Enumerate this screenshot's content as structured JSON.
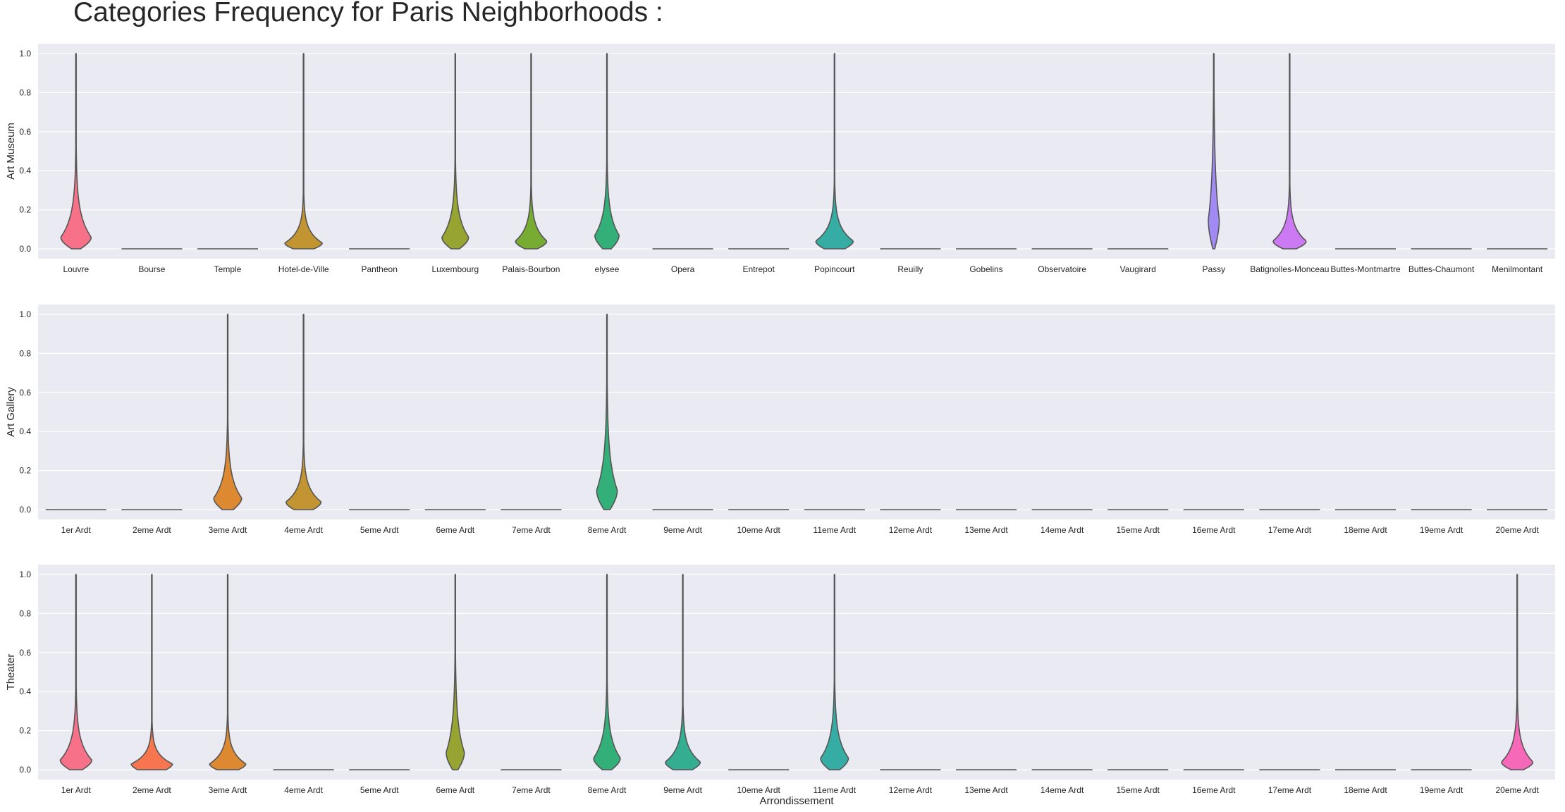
{
  "title": "Categories Frequency for Paris Neighborhoods :",
  "colors": {
    "background": "#eaeaf2",
    "grid": "#ffffff",
    "outline": "#555555",
    "palette": [
      "#f77189",
      "#f7754f",
      "#dc8932",
      "#c39532",
      "#ae9d31",
      "#97a431",
      "#77ab31",
      "#33b07a",
      "#34ae91",
      "#35ac9e",
      "#36ada4",
      "#37abb4",
      "#38a9c5",
      "#3ba3ec",
      "#8e91f4",
      "#a28af4",
      "#cc7af4",
      "#f45cf2",
      "#f565cc",
      "#f668b8"
    ]
  },
  "chart_data": [
    {
      "type": "violin",
      "ylabel": "Art Museum",
      "xlabel": "",
      "ylim": [
        0,
        1.0
      ],
      "yticks": [
        "0.0",
        "0.2",
        "0.4",
        "0.6",
        "0.8",
        "1.0"
      ],
      "grid": true,
      "categories": [
        "Louvre",
        "Bourse",
        "Temple",
        "Hotel-de-Ville",
        "Pantheon",
        "Luxembourg",
        "Palais-Bourbon",
        "elysee",
        "Opera",
        "Entrepot",
        "Popincourt",
        "Reuilly",
        "Gobelins",
        "Observatoire",
        "Vaugirard",
        "Passy",
        "Batignolles-Monceau",
        "Buttes-Montmartre",
        "Buttes-Chaumont",
        "Menilmontant"
      ],
      "violins": [
        {
          "max": 1.0,
          "peak_w": 0.5,
          "peak_y": 0.06,
          "decay": 0.11,
          "base_w": 0.3
        },
        {
          "max": 0.0
        },
        {
          "max": 0.0
        },
        {
          "max": 1.0,
          "peak_w": 0.62,
          "peak_y": 0.03,
          "decay": 0.06,
          "base_w": 0.55
        },
        {
          "max": 0.0
        },
        {
          "max": 1.0,
          "peak_w": 0.44,
          "peak_y": 0.06,
          "decay": 0.1,
          "base_w": 0.32
        },
        {
          "max": 1.0,
          "peak_w": 0.52,
          "peak_y": 0.04,
          "decay": 0.07,
          "base_w": 0.4
        },
        {
          "max": 1.0,
          "peak_w": 0.4,
          "peak_y": 0.07,
          "decay": 0.1,
          "base_w": 0.35
        },
        {
          "max": 0.0
        },
        {
          "max": 0.0
        },
        {
          "max": 1.0,
          "peak_w": 0.62,
          "peak_y": 0.04,
          "decay": 0.07,
          "base_w": 0.55
        },
        {
          "max": 0.0
        },
        {
          "max": 0.0
        },
        {
          "max": 0.0
        },
        {
          "max": 0.0
        },
        {
          "max": 1.0,
          "peak_w": 0.18,
          "peak_y": 0.15,
          "decay": 0.22,
          "base_w": 0.18
        },
        {
          "max": 1.0,
          "peak_w": 0.55,
          "peak_y": 0.04,
          "decay": 0.07,
          "base_w": 0.4
        },
        {
          "max": 0.0
        },
        {
          "max": 0.0
        },
        {
          "max": 0.0
        }
      ]
    },
    {
      "type": "violin",
      "ylabel": "Art Gallery",
      "xlabel": "",
      "ylim": [
        0,
        1.0
      ],
      "yticks": [
        "0.0",
        "0.2",
        "0.4",
        "0.6",
        "0.8",
        "1.0"
      ],
      "grid": true,
      "categories": [
        "1er Ardt",
        "2eme Ardt",
        "3eme Ardt",
        "4eme Ardt",
        "5eme Ardt",
        "6eme Ardt",
        "7eme Ardt",
        "8eme Ardt",
        "9eme Ardt",
        "10eme Ardt",
        "11eme Ardt",
        "12eme Ardt",
        "13eme Ardt",
        "14eme Ardt",
        "15eme Ardt",
        "16eme Ardt",
        "17eme Ardt",
        "18eme Ardt",
        "19eme Ardt",
        "20eme Ardt"
      ],
      "violins": [
        {
          "max": 0.0
        },
        {
          "max": 0.0
        },
        {
          "max": 1.0,
          "peak_w": 0.46,
          "peak_y": 0.06,
          "decay": 0.1,
          "base_w": 0.4
        },
        {
          "max": 1.0,
          "peak_w": 0.58,
          "peak_y": 0.04,
          "decay": 0.07,
          "base_w": 0.55
        },
        {
          "max": 0.0
        },
        {
          "max": 0.0
        },
        {
          "max": 0.0
        },
        {
          "max": 1.0,
          "peak_w": 0.34,
          "peak_y": 0.1,
          "decay": 0.15,
          "base_w": 0.3
        },
        {
          "max": 0.0
        },
        {
          "max": 0.0
        },
        {
          "max": 0.0
        },
        {
          "max": 0.0
        },
        {
          "max": 0.0
        },
        {
          "max": 0.0
        },
        {
          "max": 0.0
        },
        {
          "max": 0.0
        },
        {
          "max": 0.0
        },
        {
          "max": 0.0
        },
        {
          "max": 0.0
        },
        {
          "max": 0.0
        }
      ]
    },
    {
      "type": "violin",
      "ylabel": "Theater",
      "xlabel": "Arrondissement",
      "ylim": [
        0,
        1.0
      ],
      "yticks": [
        "0.0",
        "0.2",
        "0.4",
        "0.6",
        "0.8",
        "1.0"
      ],
      "grid": true,
      "categories": [
        "1er Ardt",
        "2eme Ardt",
        "3eme Ardt",
        "4eme Ardt",
        "5eme Ardt",
        "6eme Ardt",
        "7eme Ardt",
        "8eme Ardt",
        "9eme Ardt",
        "10eme Ardt",
        "11eme Ardt",
        "12eme Ardt",
        "13eme Ardt",
        "14eme Ardt",
        "15eme Ardt",
        "16eme Ardt",
        "17eme Ardt",
        "18eme Ardt",
        "19eme Ardt",
        "20eme Ardt"
      ],
      "violins": [
        {
          "max": 1.0,
          "peak_w": 0.52,
          "peak_y": 0.05,
          "decay": 0.09,
          "base_w": 0.4
        },
        {
          "max": 1.0,
          "peak_w": 0.68,
          "peak_y": 0.03,
          "decay": 0.05,
          "base_w": 0.7
        },
        {
          "max": 1.0,
          "peak_w": 0.6,
          "peak_y": 0.03,
          "decay": 0.06,
          "base_w": 0.6
        },
        {
          "max": 0.0
        },
        {
          "max": 0.0
        },
        {
          "max": 1.0,
          "peak_w": 0.3,
          "peak_y": 0.09,
          "decay": 0.14,
          "base_w": 0.3
        },
        {
          "max": 0.0
        },
        {
          "max": 1.0,
          "peak_w": 0.44,
          "peak_y": 0.06,
          "decay": 0.1,
          "base_w": 0.35
        },
        {
          "max": 1.0,
          "peak_w": 0.58,
          "peak_y": 0.04,
          "decay": 0.07,
          "base_w": 0.55
        },
        {
          "max": 0.0
        },
        {
          "max": 1.0,
          "peak_w": 0.46,
          "peak_y": 0.06,
          "decay": 0.1,
          "base_w": 0.38
        },
        {
          "max": 0.0
        },
        {
          "max": 0.0
        },
        {
          "max": 0.0
        },
        {
          "max": 0.0
        },
        {
          "max": 0.0
        },
        {
          "max": 0.0
        },
        {
          "max": 0.0
        },
        {
          "max": 0.0
        },
        {
          "max": 1.0,
          "peak_w": 0.52,
          "peak_y": 0.04,
          "decay": 0.08,
          "base_w": 0.4
        }
      ]
    }
  ]
}
